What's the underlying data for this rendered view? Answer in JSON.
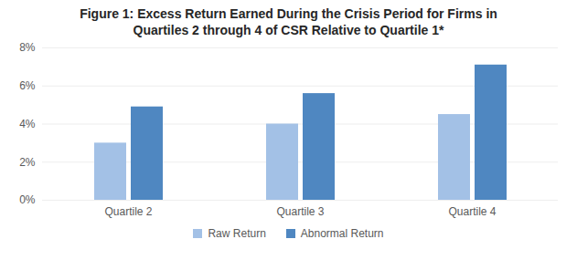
{
  "chart_data": {
    "type": "bar",
    "title": "Figure 1: Excess Return Earned During the Crisis Period for Firms in Quartiles 2 through 4 of CSR Relative to Quartile 1*",
    "categories": [
      "Quartile 2",
      "Quartile 3",
      "Quartile 4"
    ],
    "series": [
      {
        "name": "Raw Return",
        "color": "#a3c1e6",
        "values": [
          3.0,
          4.0,
          4.5
        ]
      },
      {
        "name": "Abnormal Return",
        "color": "#4f87c1",
        "values": [
          4.9,
          5.6,
          7.1
        ]
      }
    ],
    "ylim": [
      0,
      8
    ],
    "yticks": [
      {
        "value": 0,
        "label": "0%"
      },
      {
        "value": 2,
        "label": "2%"
      },
      {
        "value": 4,
        "label": "4%"
      },
      {
        "value": 6,
        "label": "6%"
      },
      {
        "value": 8,
        "label": "8%"
      }
    ],
    "grid": true,
    "legend": "bottom"
  }
}
